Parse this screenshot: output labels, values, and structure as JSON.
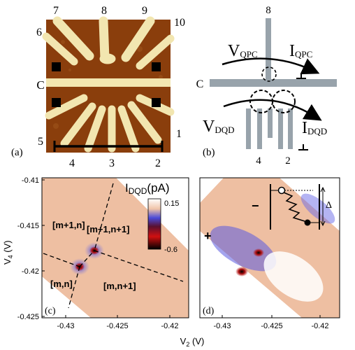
{
  "panel_a": {
    "label": "(a)",
    "gate_numbers": [
      "7",
      "8",
      "9",
      "10",
      "6",
      "5",
      "4",
      "3",
      "2",
      "1"
    ],
    "center_gate": "C"
  },
  "panel_b": {
    "label": "(b)",
    "gate_top": "8",
    "center_gate": "C",
    "v_qpc": "V",
    "v_qpc_sub": "QPC",
    "i_qpc": "I",
    "i_qpc_sub": "QPC",
    "v_dqd": "V",
    "v_dqd_sub": "DQD",
    "i_dqd": "I",
    "i_dqd_sub": "DQD",
    "gate_4": "4",
    "gate_2": "2"
  },
  "axes": {
    "ylabel": "V",
    "ylabel_sub": "4",
    "ylabel_unit": "(V)",
    "xlabel": "V",
    "xlabel_sub": "2",
    "xlabel_unit": "(V)",
    "y_ticks": [
      "-0.41",
      "-0.415",
      "-0.42",
      "-0.425"
    ],
    "x_ticks_c": [
      "-0.43",
      "-0.425",
      "-0.42"
    ],
    "x_ticks_d": [
      "-0.43",
      "-0.425",
      "-0.42"
    ]
  },
  "panel_c": {
    "label": "(c)",
    "colorbar_title": "I",
    "colorbar_title_sub": "DQD",
    "colorbar_unit": "(pA)",
    "colorbar_max": "0.15",
    "colorbar_min": "-0.6",
    "regions": [
      "[m+1,n]",
      "[m+1,n+1]",
      "[m,n]",
      "[m,n+1]"
    ]
  },
  "panel_d": {
    "label": "(d)",
    "marker_plus": "+",
    "marker_minus": "−",
    "inset_delta": "Δ"
  },
  "colors": {
    "gate_gray": "#98a3ab",
    "sem_bg": "#8a3e0c",
    "sem_gate": "#f2e6b0",
    "map_bg": "#eebfa2"
  }
}
